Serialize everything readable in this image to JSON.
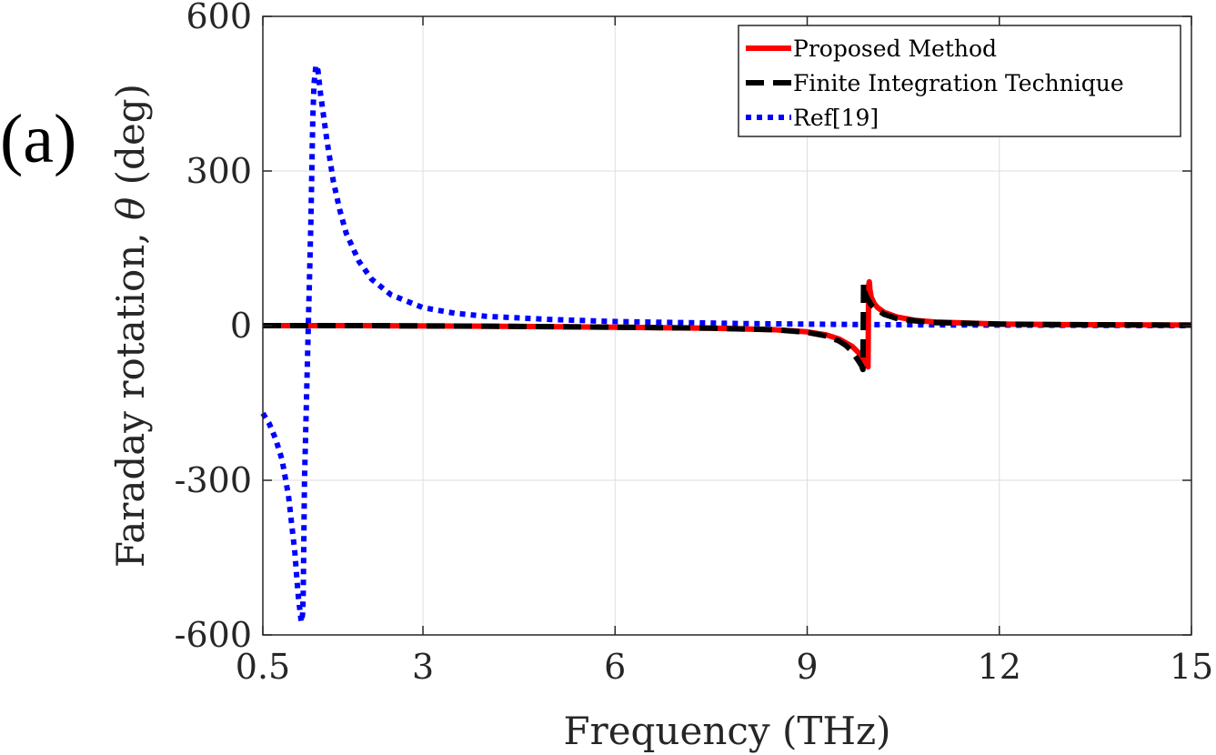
{
  "panel_label": "(a)",
  "chart_data": {
    "type": "line",
    "title": "",
    "xlabel": "Frequency (THz)",
    "ylabel_prefix": "Faraday rotation,",
    "ylabel_symbol": "θ",
    "ylabel_unit": "(deg)",
    "xlim": [
      0.5,
      15
    ],
    "ylim": [
      -600,
      600
    ],
    "xticks": [
      0.5,
      3,
      6,
      9,
      12,
      15
    ],
    "xtick_labels": [
      "0.5",
      "3",
      "6",
      "9",
      "12",
      "15"
    ],
    "yticks": [
      -600,
      -300,
      0,
      300,
      600
    ],
    "ytick_labels": [
      "-600",
      "-300",
      "0",
      "300",
      "600"
    ],
    "grid": true,
    "legend_position": "top-right",
    "series": [
      {
        "name": "Proposed Method",
        "color": "#ff0000",
        "style": "solid",
        "x": [
          0.5,
          2,
          4,
          6,
          7.5,
          8.5,
          9.0,
          9.3,
          9.5,
          9.7,
          9.8,
          9.9,
          9.93,
          9.95,
          9.96,
          9.97,
          9.98,
          10.0,
          10.05,
          10.1,
          10.2,
          10.4,
          10.7,
          11.0,
          12.0,
          13.0,
          15.0
        ],
        "y": [
          0,
          0,
          -1,
          -3,
          -5,
          -8,
          -12,
          -18,
          -26,
          -40,
          -52,
          -68,
          -75,
          -80,
          78,
          85,
          70,
          55,
          42,
          35,
          26,
          17,
          10,
          7,
          3,
          2,
          1
        ]
      },
      {
        "name": "Finite Integration Technique",
        "color": "#000000",
        "style": "dashed",
        "x": [
          0.5,
          2,
          4,
          6,
          7.5,
          8.5,
          9.0,
          9.3,
          9.5,
          9.6,
          9.7,
          9.8,
          9.85,
          9.87,
          9.88,
          9.9,
          9.93,
          10.0,
          10.1,
          10.2,
          10.4,
          10.7,
          11.0,
          12.0,
          13.0,
          15.0
        ],
        "y": [
          0,
          0,
          -1,
          -3,
          -5,
          -8,
          -13,
          -20,
          -30,
          -38,
          -50,
          -68,
          -78,
          -85,
          82,
          65,
          55,
          40,
          30,
          22,
          14,
          9,
          6,
          3,
          2,
          1
        ]
      },
      {
        "name": "Ref[19]",
        "color": "#0000ff",
        "style": "dotted",
        "x": [
          0.5,
          0.6,
          0.7,
          0.8,
          0.9,
          1.0,
          1.05,
          1.1,
          1.12,
          1.13,
          1.15,
          1.2,
          1.25,
          1.28,
          1.3,
          1.33,
          1.36,
          1.4,
          1.5,
          1.6,
          1.7,
          1.8,
          2.0,
          2.2,
          2.5,
          3.0,
          3.5,
          4.0,
          5.0,
          6.0,
          7.0,
          8.0,
          9.0,
          10.0,
          12.0,
          15.0
        ],
        "y": [
          -170,
          -190,
          -220,
          -260,
          -330,
          -440,
          -520,
          -575,
          -560,
          -520,
          -300,
          -50,
          200,
          400,
          470,
          505,
          495,
          450,
          360,
          280,
          225,
          180,
          125,
          90,
          60,
          35,
          24,
          18,
          12,
          8,
          6,
          4,
          3,
          2,
          1,
          0
        ]
      }
    ]
  }
}
